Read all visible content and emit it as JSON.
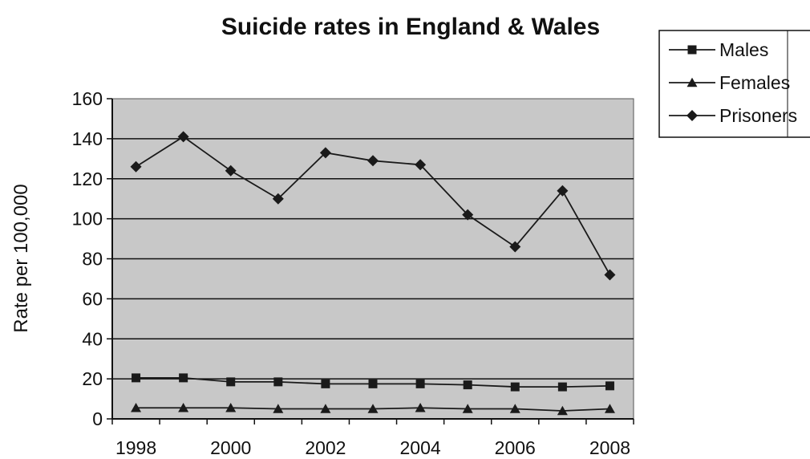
{
  "chart_data": {
    "type": "line",
    "title": "Suicide rates in England & Wales",
    "ylabel": "Rate per 100,000",
    "xlabel": "",
    "x": [
      1998,
      1999,
      2000,
      2001,
      2002,
      2003,
      2004,
      2005,
      2006,
      2007,
      2008
    ],
    "x_tick_labels": [
      "1998",
      "2000",
      "2002",
      "2004",
      "2006",
      "2008"
    ],
    "ylim": [
      0,
      160
    ],
    "y_ticks": [
      0,
      20,
      40,
      60,
      80,
      100,
      120,
      140,
      160
    ],
    "grid": true,
    "legend_position": "top-right",
    "plot_background": "#c8c8c8",
    "line_color": "#1a1a1a",
    "series": [
      {
        "name": "Males",
        "marker": "square",
        "values": [
          20.5,
          20.5,
          18.5,
          18.5,
          17.5,
          17.5,
          17.5,
          17,
          16,
          16,
          16.5
        ]
      },
      {
        "name": "Females",
        "marker": "triangle",
        "values": [
          5.5,
          5.5,
          5.5,
          5,
          5,
          5,
          5.5,
          5,
          5,
          4,
          5
        ]
      },
      {
        "name": "Prisoners",
        "marker": "diamond",
        "values": [
          126,
          141,
          124,
          110,
          133,
          129,
          127,
          102,
          86,
          114,
          72
        ]
      }
    ]
  }
}
